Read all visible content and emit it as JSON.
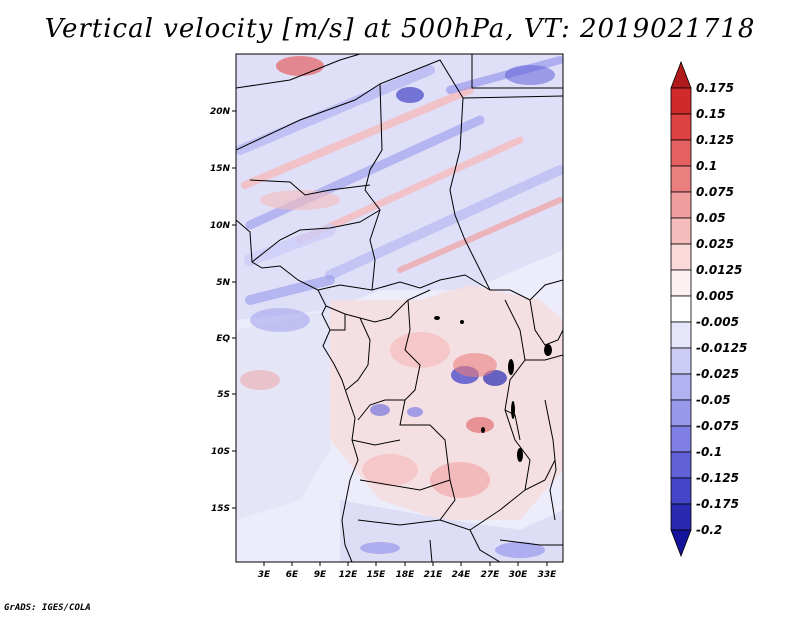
{
  "title": "Vertical velocity [m/s] at 500hPa, VT: 2019021718",
  "credit": "GrADS: IGES/COLA",
  "map": {
    "lat_ticks": [
      "20N",
      "15N",
      "10N",
      "5N",
      "EQ",
      "5S",
      "10S",
      "15S"
    ],
    "lon_ticks": [
      "3E",
      "6E",
      "9E",
      "12E",
      "15E",
      "18E",
      "21E",
      "24E",
      "27E",
      "30E",
      "33E"
    ]
  },
  "colorbar": {
    "levels": [
      "0.175",
      "0.15",
      "0.125",
      "0.1",
      "0.075",
      "0.05",
      "0.025",
      "0.0125",
      "0.005",
      "-0.005",
      "-0.0125",
      "-0.025",
      "-0.05",
      "-0.075",
      "-0.1",
      "-0.125",
      "-0.175",
      "-0.2"
    ],
    "colors": [
      "#b21b1b",
      "#d12a2a",
      "#dd4343",
      "#e46161",
      "#ea7f7f",
      "#f09e9e",
      "#f5bcbc",
      "#f9d9d9",
      "#fdf0f0",
      "#ffffff",
      "#e6e6fa",
      "#ccccf7",
      "#b2b2f2",
      "#9999ec",
      "#7f7fe4",
      "#6161d8",
      "#4545c8",
      "#2a2ab0",
      "#14149a"
    ]
  }
}
